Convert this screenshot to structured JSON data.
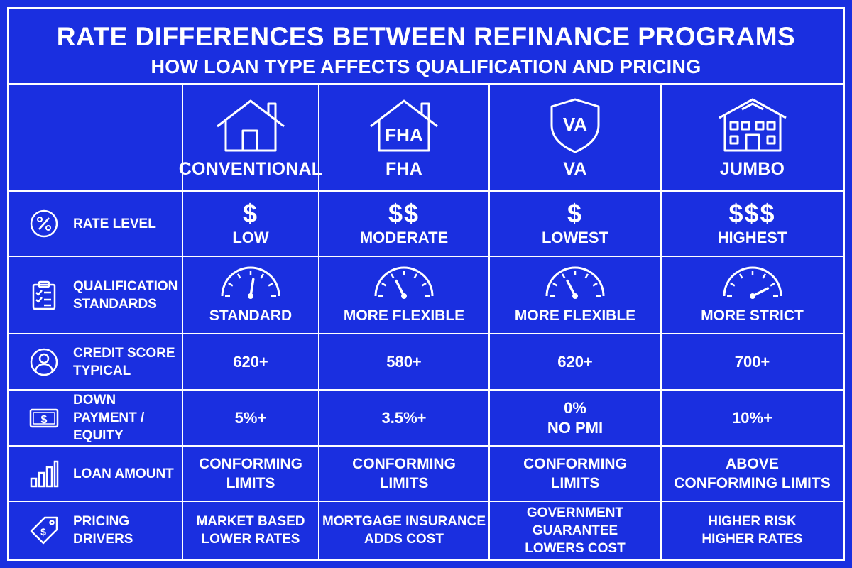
{
  "title": "RATE DIFFERENCES BETWEEN REFINANCE PROGRAMS",
  "subtitle": "HOW LOAN TYPE AFFECTS QUALIFICATION AND PRICING",
  "programs": [
    {
      "name": "CONVENTIONAL",
      "icon": "house-icon",
      "icon_text": ""
    },
    {
      "name": "FHA",
      "icon": "fha-house-icon",
      "icon_text": "FHA"
    },
    {
      "name": "VA",
      "icon": "va-shield-icon",
      "icon_text": "VA"
    },
    {
      "name": "JUMBO",
      "icon": "mansion-icon",
      "icon_text": ""
    }
  ],
  "rows": {
    "rate_level": {
      "label": "RATE LEVEL",
      "icon": "percent-icon",
      "symbols": [
        "$",
        "$$",
        "$",
        "$$$"
      ],
      "values": [
        "LOW",
        "MODERATE",
        "LOWEST",
        "HIGHEST"
      ]
    },
    "qualification": {
      "label": "QUALIFICATION\nSTANDARDS",
      "icon": "clipboard-checklist-icon",
      "values": [
        "STANDARD",
        "MORE FLEXIBLE",
        "MORE FLEXIBLE",
        "MORE STRICT"
      ],
      "gauge_levels": [
        0.55,
        0.35,
        0.35,
        0.85
      ]
    },
    "credit_score": {
      "label": "CREDIT SCORE\nTYPICAL",
      "icon": "user-circle-icon",
      "values": [
        "620+",
        "580+",
        "620+",
        "700+"
      ]
    },
    "down_payment": {
      "label": "DOWN PAYMENT /\nEQUITY",
      "icon": "dollar-bill-icon",
      "values": [
        "5%+",
        "3.5%+",
        "0%\nNO PMI",
        "10%+"
      ]
    },
    "loan_amount": {
      "label": "LOAN AMOUNT",
      "icon": "bar-chart-icon",
      "values": [
        "CONFORMING\nLIMITS",
        "CONFORMING\nLIMITS",
        "CONFORMING\nLIMITS",
        "ABOVE\nCONFORMING LIMITS"
      ]
    },
    "pricing_drivers": {
      "label": "PRICING DRIVERS",
      "icon": "price-tag-icon",
      "values": [
        "MARKET BASED\nLOWER RATES",
        "MORTGAGE INSURANCE\nADDS COST",
        "GOVERNMENT GUARANTEE\nLOWERS COST",
        "HIGHER RISK\nHIGHER RATES"
      ]
    }
  },
  "colors": {
    "background": "#1a2fe0",
    "foreground": "#ffffff"
  }
}
